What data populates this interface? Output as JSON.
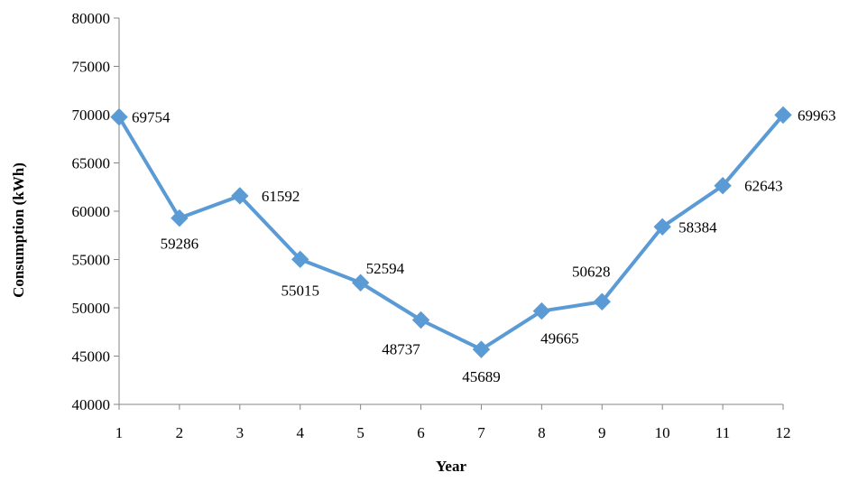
{
  "chart_data": {
    "type": "line",
    "xlabel": "Year",
    "ylabel": "Consumption (kWh)",
    "x": [
      1,
      2,
      3,
      4,
      5,
      6,
      7,
      8,
      9,
      10,
      11,
      12
    ],
    "xticks": [
      "1",
      "2",
      "3",
      "4",
      "5",
      "6",
      "7",
      "8",
      "9",
      "10",
      "11",
      "12"
    ],
    "ylim": [
      40000,
      80000
    ],
    "yticks": [
      "40000",
      "45000",
      "50000",
      "55000",
      "60000",
      "65000",
      "70000",
      "75000",
      "80000"
    ],
    "series": [
      {
        "values": [
          69754,
          59286,
          61592,
          55015,
          52594,
          48737,
          45689,
          49665,
          50628,
          58384,
          62643,
          69963
        ],
        "labels": [
          "69754",
          "59286",
          "61592",
          "55015",
          "52594",
          "48737",
          "45689",
          "49665",
          "50628",
          "58384",
          "62643",
          "69963"
        ],
        "color": "#5b9bd5"
      }
    ],
    "grid": false,
    "legend": "none"
  }
}
